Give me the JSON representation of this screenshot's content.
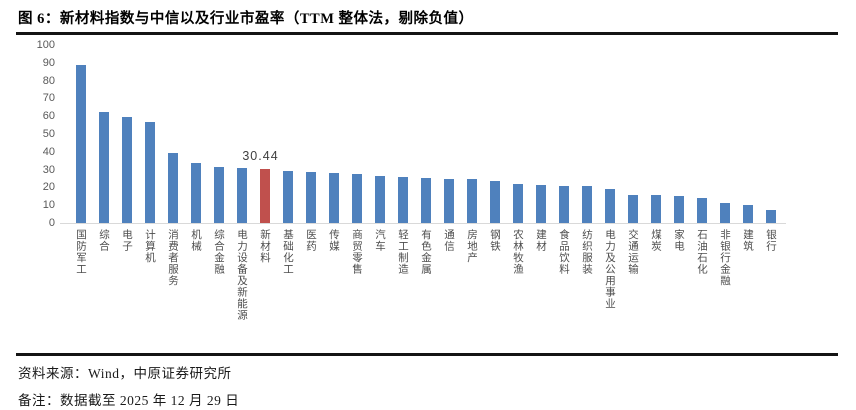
{
  "figure": {
    "title": "图 6：新材料指数与中信以及行业市盈率（TTM 整体法，剔除负值）",
    "source": "资料来源：Wind，中原证券研究所",
    "note": "备注：数据截至 2025 年 12 月 29 日"
  },
  "chart_data": {
    "type": "bar",
    "title": "新材料指数与中信以及行业市盈率（TTM 整体法，剔除负值）",
    "categories": [
      "国防军工",
      "综合",
      "电子",
      "计算机",
      "消费者服务",
      "机械",
      "综合金融",
      "电力设备及新能源",
      "新材料",
      "基础化工",
      "医药",
      "传媒",
      "商贸零售",
      "汽车",
      "轻工制造",
      "有色金属",
      "通信",
      "房地产",
      "钢铁",
      "农林牧渔",
      "建材",
      "食品饮料",
      "纺织服装",
      "电力及公用事业",
      "交通运输",
      "煤炭",
      "家电",
      "石油石化",
      "非银行金融",
      "建筑",
      "银行"
    ],
    "values": [
      89,
      62.5,
      59.5,
      56.5,
      39.5,
      33.5,
      31.5,
      31,
      30.44,
      29.5,
      28.5,
      28,
      27.5,
      26.5,
      26,
      25.5,
      25,
      24.5,
      23.5,
      22,
      21.5,
      21,
      21,
      19,
      16,
      15.5,
      15,
      14,
      11.5,
      10,
      7.5
    ],
    "highlight_index": 8,
    "highlight_label": "30.44",
    "xlabel": "",
    "ylabel": "",
    "ylim": [
      0,
      100
    ],
    "yticks": [
      0,
      10,
      20,
      30,
      40,
      50,
      60,
      70,
      80,
      90,
      100
    ],
    "grid": false,
    "legend": "none"
  },
  "colors": {
    "bar": "#4F81BD",
    "highlight": "#C0504D",
    "axis_text": "#595959",
    "axis_line": "#D9D9D9",
    "rule": "#141414"
  }
}
